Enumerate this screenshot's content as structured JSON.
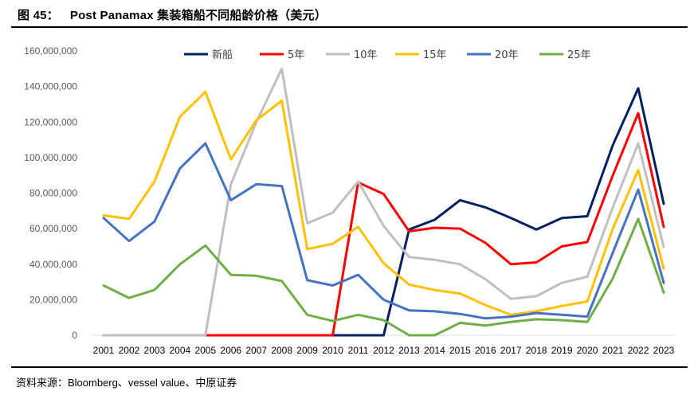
{
  "header": {
    "figure_label": "图 45：",
    "title": "Post Panamax 集装箱船不同船龄价格（美元）"
  },
  "footer": {
    "source": "资料来源：Bloomberg、vessel value、中原证券"
  },
  "chart_data": {
    "type": "line",
    "title": "Post Panamax 集装箱船不同船龄价格（美元）",
    "xlabel": "",
    "ylabel": "",
    "ylim": [
      0,
      160000000
    ],
    "yticks": [
      0,
      20000000,
      40000000,
      60000000,
      80000000,
      100000000,
      120000000,
      140000000,
      160000000
    ],
    "ytick_labels": [
      "0",
      "20,000,000",
      "40,000,000",
      "60,000,000",
      "80,000,000",
      "100,000,000",
      "120,000,000",
      "140,000,000",
      "160,000,000"
    ],
    "grid": false,
    "legend_position": "top",
    "categories": [
      "2001",
      "2002",
      "2003",
      "2004",
      "2005",
      "2006",
      "2007",
      "2008",
      "2009",
      "2010",
      "2011",
      "2012",
      "2013",
      "2014",
      "2015",
      "2016",
      "2017",
      "2018",
      "2019",
      "2020",
      "2021",
      "2022",
      "2023"
    ],
    "series": [
      {
        "name": "新船",
        "color": "#002060",
        "values": [
          0,
          0,
          0,
          0,
          0,
          0,
          0,
          0,
          0,
          0,
          0,
          0,
          59500000,
          65000000,
          76000000,
          72000000,
          66000000,
          59500000,
          66000000,
          67000000,
          107000000,
          139000000,
          74000000
        ]
      },
      {
        "name": "5年",
        "color": "#FF0000",
        "values": [
          0,
          0,
          0,
          0,
          0,
          0,
          0,
          0,
          0,
          0,
          86000000,
          79500000,
          58500000,
          60500000,
          60000000,
          52000000,
          40000000,
          41000000,
          50000000,
          52500000,
          90000000,
          125000000,
          61000000
        ]
      },
      {
        "name": "10年",
        "color": "#BFBFBF",
        "values": [
          0,
          0,
          0,
          0,
          0,
          85000000,
          120000000,
          150000000,
          63000000,
          69000000,
          86500000,
          61500000,
          44000000,
          42500000,
          40000000,
          31500000,
          20500000,
          22000000,
          29500000,
          33000000,
          72000000,
          108000000,
          49500000
        ]
      },
      {
        "name": "15年",
        "color": "#FFC000",
        "values": [
          67500000,
          65500000,
          86500000,
          123000000,
          137000000,
          99000000,
          121000000,
          132000000,
          48500000,
          51500000,
          61000000,
          40500000,
          28500000,
          25500000,
          23500000,
          17000000,
          11500000,
          13500000,
          16500000,
          19000000,
          60000000,
          93000000,
          37500000
        ]
      },
      {
        "name": "20年",
        "color": "#4472C4",
        "values": [
          66000000,
          53000000,
          64000000,
          94000000,
          108000000,
          76000000,
          85000000,
          84000000,
          31000000,
          28000000,
          34000000,
          20000000,
          14000000,
          13500000,
          12000000,
          9500000,
          10500000,
          12500000,
          11500000,
          10500000,
          46500000,
          82000000,
          29500000
        ]
      },
      {
        "name": "25年",
        "color": "#70AD47",
        "values": [
          28000000,
          21000000,
          25500000,
          40000000,
          50500000,
          34000000,
          33500000,
          30500000,
          11500000,
          8000000,
          11500000,
          8500000,
          0,
          0,
          7000000,
          5500000,
          7500000,
          9000000,
          8500000,
          7500000,
          32000000,
          65500000,
          24000000
        ]
      }
    ]
  }
}
